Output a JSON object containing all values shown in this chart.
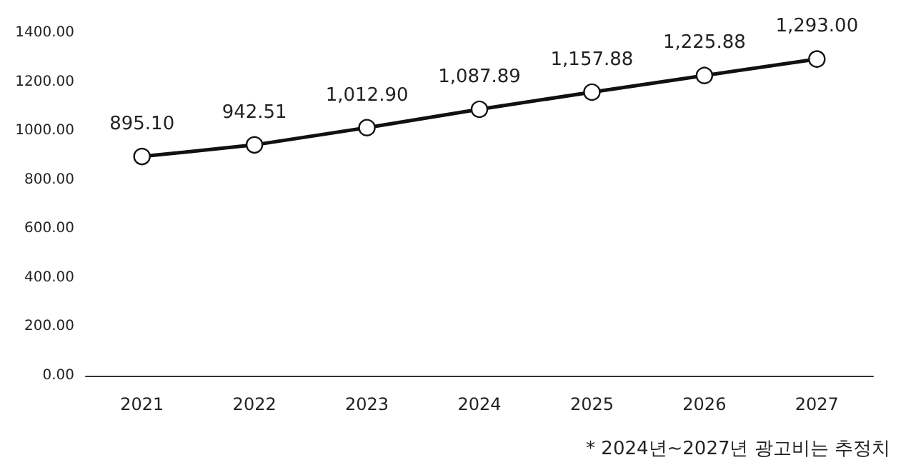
{
  "chart_data": {
    "type": "line",
    "categories": [
      "2021",
      "2022",
      "2023",
      "2024",
      "2025",
      "2026",
      "2027"
    ],
    "series": [
      {
        "color": "#111111",
        "values": [
          895.1,
          942.51,
          1012.9,
          1087.89,
          1157.88,
          1225.88,
          1293.0
        ],
        "value_labels": [
          "895.10",
          "942.51",
          "1,012.90",
          "1,087.89",
          "1,157.88",
          "1,225.88",
          "1,293.00"
        ]
      }
    ],
    "ylim": [
      0,
      1400
    ],
    "yticks": [
      {
        "value": 0,
        "label": "0.00"
      },
      {
        "value": 200,
        "label": "200.00"
      },
      {
        "value": 400,
        "label": "400.00"
      },
      {
        "value": 600,
        "label": "600.00"
      },
      {
        "value": 800,
        "label": "800.00"
      },
      {
        "value": 1000,
        "label": "1000.00"
      },
      {
        "value": 1200,
        "label": "1200.00"
      },
      {
        "value": 1400,
        "label": "1400.00"
      }
    ],
    "grid": false,
    "marker": "circle",
    "line_style": "solid",
    "annotations": [
      "* 2024년~2027년 광고비는 추정치"
    ]
  }
}
